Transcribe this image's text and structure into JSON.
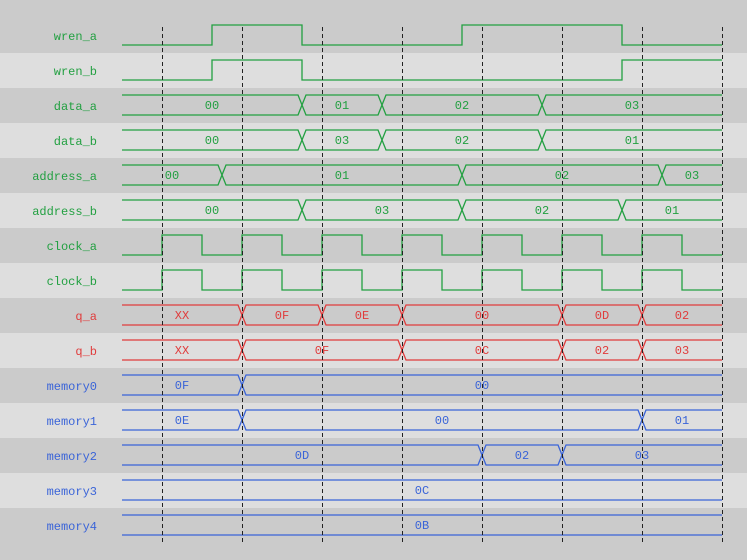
{
  "colors": {
    "row_dark": "#cbcbcb",
    "row_light": "#dedede",
    "green": "#22a041",
    "red": "#e03c3c",
    "blue": "#3a64d8",
    "grid": "#222222"
  },
  "time_range": [
    0,
    60
  ],
  "grid_times": [
    4,
    12,
    20,
    28,
    36,
    44,
    52,
    60
  ],
  "signals": [
    {
      "name": "wren_a",
      "kind": "bit",
      "color": "green",
      "init": 0,
      "edges": [
        9,
        18,
        34,
        50
      ]
    },
    {
      "name": "wren_b",
      "kind": "bit",
      "color": "green",
      "init": 0,
      "edges": [
        9,
        18,
        50
      ]
    },
    {
      "name": "data_a",
      "kind": "bus",
      "color": "green",
      "segments": [
        {
          "v": "00",
          "t0": 0,
          "t1": 18
        },
        {
          "v": "01",
          "t0": 18,
          "t1": 26
        },
        {
          "v": "02",
          "t0": 26,
          "t1": 42
        },
        {
          "v": "03",
          "t0": 42,
          "t1": 60
        }
      ]
    },
    {
      "name": "data_b",
      "kind": "bus",
      "color": "green",
      "segments": [
        {
          "v": "00",
          "t0": 0,
          "t1": 18
        },
        {
          "v": "03",
          "t0": 18,
          "t1": 26
        },
        {
          "v": "02",
          "t0": 26,
          "t1": 42
        },
        {
          "v": "01",
          "t0": 42,
          "t1": 60
        }
      ]
    },
    {
      "name": "address_a",
      "kind": "bus",
      "color": "green",
      "segments": [
        {
          "v": "00",
          "t0": 0,
          "t1": 10
        },
        {
          "v": "01",
          "t0": 10,
          "t1": 34
        },
        {
          "v": "02",
          "t0": 34,
          "t1": 54
        },
        {
          "v": "03",
          "t0": 54,
          "t1": 60
        }
      ]
    },
    {
      "name": "address_b",
      "kind": "bus",
      "color": "green",
      "segments": [
        {
          "v": "00",
          "t0": 0,
          "t1": 18
        },
        {
          "v": "03",
          "t0": 18,
          "t1": 34
        },
        {
          "v": "02",
          "t0": 34,
          "t1": 50
        },
        {
          "v": "01",
          "t0": 50,
          "t1": 60
        }
      ]
    },
    {
      "name": "clock_a",
      "kind": "clock",
      "color": "green",
      "init": 0,
      "first_edge": 4,
      "half_period": 4
    },
    {
      "name": "clock_b",
      "kind": "clock",
      "color": "green",
      "init": 0,
      "first_edge": 4,
      "half_period": 4
    },
    {
      "name": "q_a",
      "kind": "bus",
      "color": "red",
      "segments": [
        {
          "v": "XX",
          "t0": 0,
          "t1": 12
        },
        {
          "v": "0F",
          "t0": 12,
          "t1": 20
        },
        {
          "v": "0E",
          "t0": 20,
          "t1": 28
        },
        {
          "v": "00",
          "t0": 28,
          "t1": 44
        },
        {
          "v": "0D",
          "t0": 44,
          "t1": 52
        },
        {
          "v": "02",
          "t0": 52,
          "t1": 60
        }
      ]
    },
    {
      "name": "q_b",
      "kind": "bus",
      "color": "red",
      "segments": [
        {
          "v": "XX",
          "t0": 0,
          "t1": 12
        },
        {
          "v": "0F",
          "t0": 12,
          "t1": 28
        },
        {
          "v": "0C",
          "t0": 28,
          "t1": 44
        },
        {
          "v": "02",
          "t0": 44,
          "t1": 52
        },
        {
          "v": "03",
          "t0": 52,
          "t1": 60
        }
      ]
    },
    {
      "name": "memory0",
      "kind": "bus",
      "color": "blue",
      "segments": [
        {
          "v": "0F",
          "t0": 0,
          "t1": 12
        },
        {
          "v": "00",
          "t0": 12,
          "t1": 60
        }
      ]
    },
    {
      "name": "memory1",
      "kind": "bus",
      "color": "blue",
      "segments": [
        {
          "v": "0E",
          "t0": 0,
          "t1": 12
        },
        {
          "v": "00",
          "t0": 12,
          "t1": 52
        },
        {
          "v": "01",
          "t0": 52,
          "t1": 60
        }
      ]
    },
    {
      "name": "memory2",
      "kind": "bus",
      "color": "blue",
      "segments": [
        {
          "v": "0D",
          "t0": 0,
          "t1": 36
        },
        {
          "v": "02",
          "t0": 36,
          "t1": 44
        },
        {
          "v": "03",
          "t0": 44,
          "t1": 60
        }
      ]
    },
    {
      "name": "memory3",
      "kind": "bus",
      "color": "blue",
      "segments": [
        {
          "v": "0C",
          "t0": 0,
          "t1": 60
        }
      ]
    },
    {
      "name": "memory4",
      "kind": "bus",
      "color": "blue",
      "segments": [
        {
          "v": "0B",
          "t0": 0,
          "t1": 60
        }
      ]
    }
  ]
}
